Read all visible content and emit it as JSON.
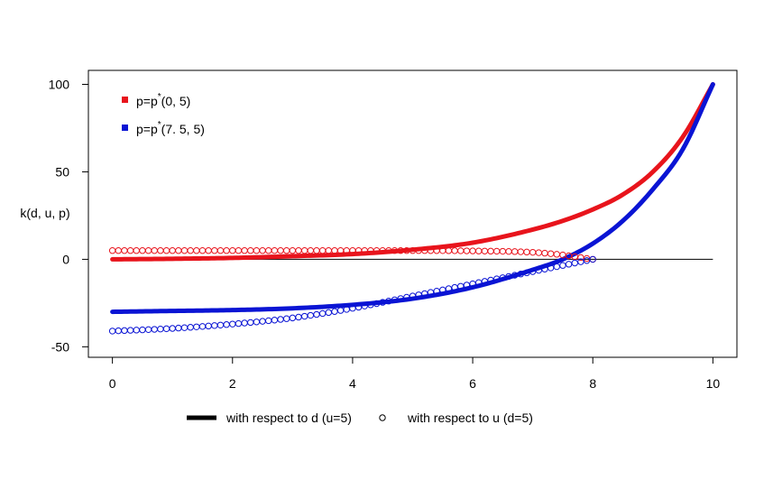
{
  "chart_data": {
    "type": "scatter",
    "title": "",
    "xlabel": "",
    "ylabel": "k(d, u, p)",
    "xlim": [
      -0.4,
      10.4
    ],
    "ylim": [
      -56,
      108
    ],
    "grid": false,
    "xticks": [
      0,
      2,
      4,
      6,
      8,
      10
    ],
    "yticks": [
      -50,
      0,
      50,
      100
    ],
    "xtick_labels": [
      "0",
      "2",
      "4",
      "6",
      "8",
      "10"
    ],
    "ytick_labels": [
      "-50",
      "0",
      "50",
      "100"
    ],
    "colors": {
      "red": "#e8141c",
      "blue": "#0a14d4",
      "axis": "#000000"
    },
    "legend_top": {
      "placement": "top-left",
      "entries": [
        {
          "base": "p=p",
          "sup": "*",
          "args": "(0, 5)",
          "color": "#e8141c"
        },
        {
          "base": "p=p",
          "sup": "*",
          "args": "(7. 5, 5)",
          "color": "#0a14d4"
        }
      ]
    },
    "legend_bottom": {
      "placement": "bottom",
      "entries": [
        {
          "label": "with respect to d (u=5)",
          "marker": "line"
        },
        {
          "label": "with respect to u (d=5)",
          "marker": "circle"
        }
      ]
    },
    "reference_line": {
      "y": 0,
      "x_range": [
        0,
        10
      ]
    },
    "series": [
      {
        "key": "red_d",
        "style": "line",
        "color": "#e8141c",
        "x": [
          0,
          1,
          2,
          3,
          4,
          5,
          6,
          7,
          7.5,
          8,
          8.5,
          9,
          9.5,
          10
        ],
        "y": [
          0,
          0.3,
          0.8,
          1.8,
          3,
          5.5,
          9.5,
          17,
          22,
          28.5,
          37,
          50,
          70,
          100
        ]
      },
      {
        "key": "blue_d",
        "style": "line",
        "color": "#0a14d4",
        "x": [
          0,
          1,
          2,
          3,
          4,
          5,
          6,
          7,
          7.5,
          8,
          8.5,
          9,
          9.5,
          10
        ],
        "y": [
          -30,
          -29.5,
          -29,
          -28,
          -26,
          -22.5,
          -16,
          -6,
          0,
          9,
          22,
          40,
          63,
          100
        ]
      },
      {
        "key": "red_u",
        "style": "circles",
        "color": "#e8141c",
        "x": [
          0,
          1,
          2,
          3,
          4,
          5,
          6,
          7,
          7.5,
          7.8,
          8
        ],
        "y": [
          5,
          5,
          5,
          5,
          5,
          5,
          4.8,
          4,
          2.5,
          1,
          0
        ]
      },
      {
        "key": "blue_u",
        "style": "circles",
        "color": "#0a14d4",
        "x": [
          0,
          1,
          2,
          3,
          4,
          5,
          6,
          7,
          7.5,
          8
        ],
        "y": [
          -41,
          -39.5,
          -37,
          -33.5,
          -28,
          -21,
          -14,
          -7,
          -3.5,
          0
        ]
      }
    ]
  }
}
